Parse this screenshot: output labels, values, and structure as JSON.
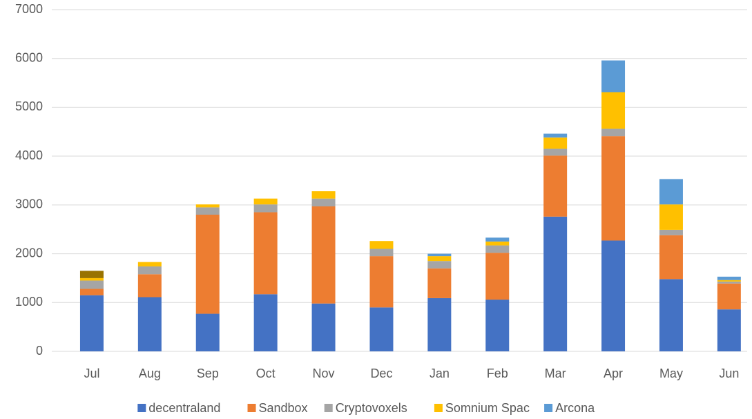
{
  "chart_data": {
    "type": "stacked_bar",
    "categories": [
      "Jul",
      "Aug",
      "Sep",
      "Oct",
      "Nov",
      "Dec",
      "Jan",
      "Feb",
      "Mar",
      "Apr",
      "May",
      "Jun"
    ],
    "series": [
      {
        "name": "decentraland",
        "color": "#4472c4",
        "values": [
          1150,
          1110,
          770,
          1170,
          980,
          900,
          1090,
          1060,
          2760,
          2270,
          1480,
          860
        ]
      },
      {
        "name": "Sandbox",
        "color": "#ed7d31",
        "values": [
          130,
          470,
          2030,
          1680,
          1990,
          1050,
          610,
          960,
          1250,
          2140,
          900,
          530
        ]
      },
      {
        "name": "Cryptovoxels",
        "color": "#a5a5a5",
        "values": [
          170,
          160,
          150,
          160,
          160,
          150,
          150,
          150,
          140,
          150,
          110,
          40
        ]
      },
      {
        "name": "Somnium Spac",
        "color": "#ffc000",
        "values": [
          50,
          90,
          60,
          120,
          150,
          160,
          100,
          80,
          230,
          750,
          520,
          30
        ]
      },
      {
        "name": "Arcona",
        "color": "#5b9bd5",
        "values": [
          0,
          0,
          0,
          0,
          0,
          0,
          50,
          80,
          80,
          650,
          520,
          70
        ]
      },
      {
        "color": "#997300",
        "values": [
          150,
          0,
          0,
          0,
          0,
          0,
          0,
          0,
          0,
          0,
          0,
          0
        ]
      }
    ],
    "ylim": [
      0,
      7000
    ],
    "yticks": [
      0,
      1000,
      2000,
      3000,
      4000,
      5000,
      6000,
      7000
    ],
    "grid": true,
    "legend": "bottom"
  }
}
